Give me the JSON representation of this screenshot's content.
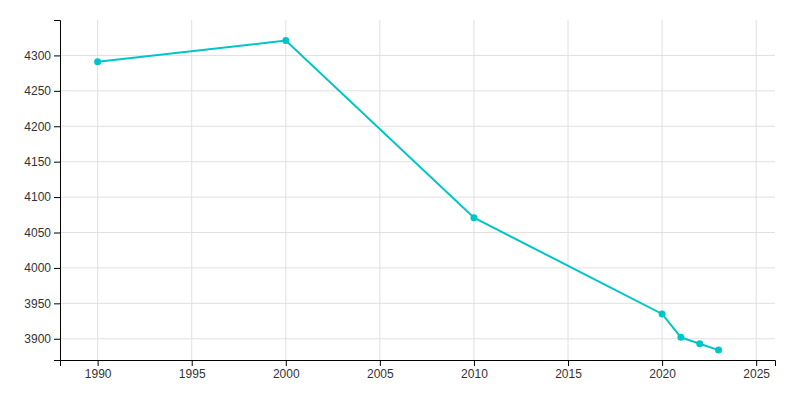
{
  "chart_data": {
    "type": "line",
    "x": [
      1990,
      2000,
      2010,
      2020,
      2021,
      2022,
      2023
    ],
    "values": [
      4291,
      4321,
      4071,
      3935,
      3902,
      3893,
      3884
    ],
    "color": "#00c5c8",
    "marker": "circle",
    "xlim": [
      1988,
      2026
    ],
    "ylim": [
      3870,
      4350
    ],
    "xticks": [
      1990,
      1995,
      2000,
      2005,
      2010,
      2015,
      2020,
      2025
    ],
    "yticks": [
      3900,
      3950,
      4000,
      4050,
      4100,
      4150,
      4200,
      4250,
      4300
    ],
    "grid": true
  }
}
